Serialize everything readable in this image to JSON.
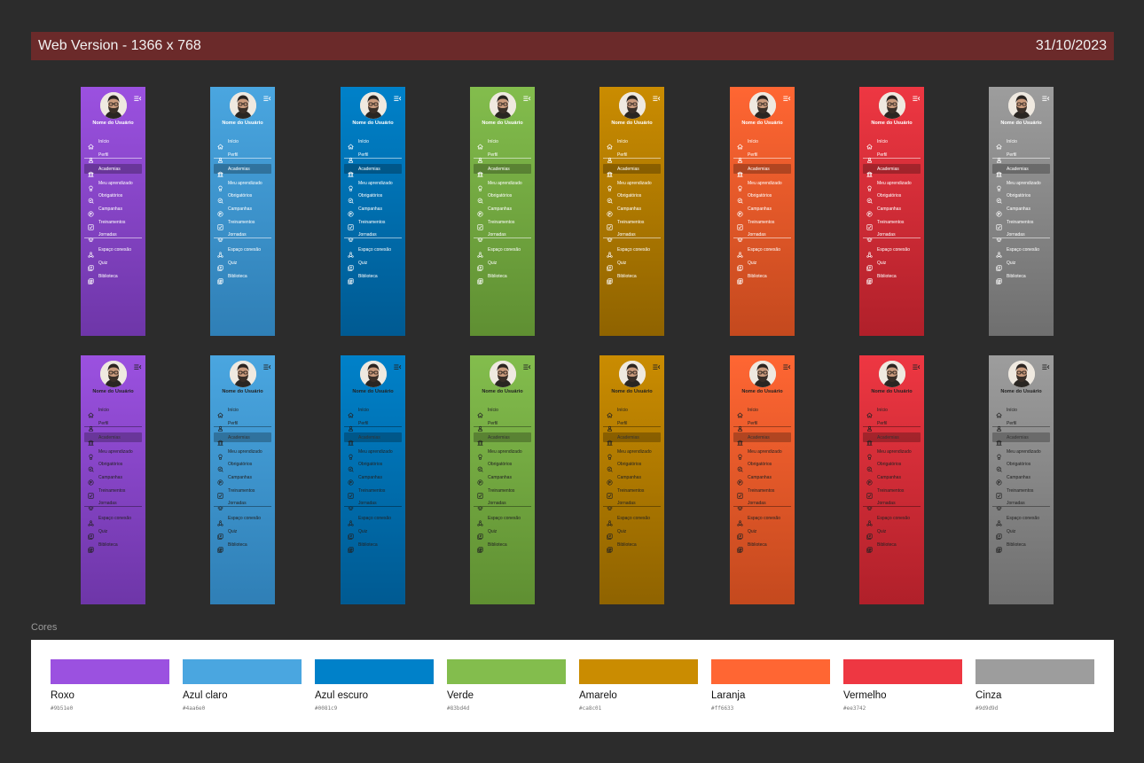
{
  "header": {
    "title": "Web Version - 1366 x 768",
    "date": "31/10/2023"
  },
  "sidebar": {
    "user_name": "Nome do Usuário",
    "items": [
      {
        "label": "Início",
        "icon": "home-icon"
      },
      {
        "label": "Perfil",
        "icon": "user-icon"
      },
      {
        "label": "Academias",
        "icon": "academy-icon",
        "active": true
      },
      {
        "label": "Meu aprendizado",
        "icon": "learning-icon"
      },
      {
        "label": "Obrigatórios",
        "icon": "required-icon"
      },
      {
        "label": "Campanhas",
        "icon": "campaign-icon"
      },
      {
        "label": "Treinamentos",
        "icon": "training-icon"
      },
      {
        "label": "Jornadas",
        "icon": "journey-icon"
      },
      {
        "label": "Espaço conexão",
        "icon": "connection-icon"
      },
      {
        "label": "Quiz",
        "icon": "quiz-icon"
      },
      {
        "label": "Biblioteca",
        "icon": "library-icon"
      }
    ]
  },
  "themes": [
    {
      "top": "#9b51e0",
      "bottom": "#6e36a8"
    },
    {
      "top": "#4aa6e0",
      "bottom": "#2f7fb6"
    },
    {
      "top": "#0081c9",
      "bottom": "#005a92"
    },
    {
      "top": "#83bd4d",
      "bottom": "#5f8f32"
    },
    {
      "top": "#ca8c01",
      "bottom": "#8f6300"
    },
    {
      "top": "#ff6633",
      "bottom": "#c4491e"
    },
    {
      "top": "#ee3742",
      "bottom": "#b0202a"
    },
    {
      "top": "#9d9d9d",
      "bottom": "#6f6f6f"
    }
  ],
  "cores": {
    "label": "Cores",
    "swatches": [
      {
        "name": "Roxo",
        "hex": "#9b51e0"
      },
      {
        "name": "Azul claro",
        "hex": "#4aa6e0"
      },
      {
        "name": "Azul escuro",
        "hex": "#0081c9"
      },
      {
        "name": "Verde",
        "hex": "#83bd4d"
      },
      {
        "name": "Amarelo",
        "hex": "#ca8c01"
      },
      {
        "name": "Laranja",
        "hex": "#ff6633"
      },
      {
        "name": "Vermelho",
        "hex": "#ee3742"
      },
      {
        "name": "Cinza",
        "hex": "#9d9d9d"
      }
    ]
  }
}
